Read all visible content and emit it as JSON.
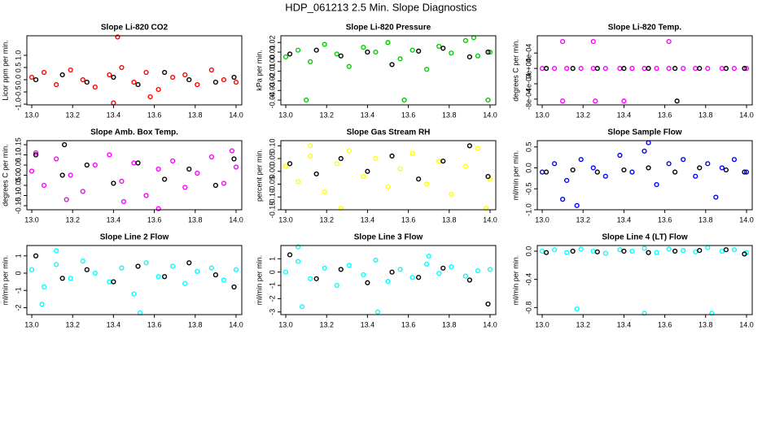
{
  "title": "HDP_061213  2.5 Min. Slope Diagnostics",
  "chart_data": [
    {
      "type": "scatter",
      "title": "Slope Li-820 CO2",
      "ylabel": "Licor ppm per min.",
      "xlim": [
        12.976,
        14.028
      ],
      "xticks": [
        {
          "value": 13,
          "label": "13.0"
        },
        13.2,
        13.4,
        13.6,
        13.8,
        {
          "value": 14,
          "label": "14.0"
        }
      ],
      "ylim": [
        -1.03,
        1.8
      ],
      "yticks": [
        {
          "value": -1,
          "label": "-1.0"
        },
        -0.5,
        {
          "value": 0,
          "label": "0.0"
        },
        0.5,
        {
          "value": 1,
          "label": "1.0"
        }
      ],
      "series": [
        {
          "color": "#ff0000",
          "x": [
            13.0,
            13.06,
            13.12,
            13.19,
            13.25,
            13.31,
            13.38,
            13.44,
            13.5,
            13.56,
            13.62,
            13.69,
            13.75,
            13.81,
            13.88,
            13.94,
            14.0,
            13.42,
            13.4,
            13.58
          ],
          "values": [
            0.1,
            0.3,
            -0.2,
            0.4,
            0.0,
            -0.3,
            0.2,
            0.5,
            -0.1,
            0.3,
            -0.4,
            0.1,
            0.2,
            -0.2,
            0.4,
            0.0,
            -0.1,
            1.75,
            -0.95,
            -0.7
          ]
        },
        {
          "color": "#000000",
          "x": [
            13.02,
            13.15,
            13.27,
            13.4,
            13.52,
            13.65,
            13.77,
            13.9,
            13.99
          ],
          "values": [
            0.0,
            0.2,
            -0.1,
            0.1,
            -0.2,
            0.3,
            0.0,
            -0.1,
            0.1
          ]
        }
      ]
    },
    {
      "type": "scatter",
      "title": "Slope Li-820 Pressure",
      "ylabel": "kPa per min.",
      "xlim": [
        12.976,
        14.028
      ],
      "xticks": [
        {
          "value": 13,
          "label": "13.0"
        },
        13.2,
        13.4,
        13.6,
        13.8,
        {
          "value": 14,
          "label": "14.0"
        }
      ],
      "ylim": [
        -0.045,
        0.027
      ],
      "yticks": [
        -0.04,
        -0.03,
        -0.02,
        -0.01,
        {
          "value": 0,
          "label": "0.00"
        },
        0.01,
        0.02
      ],
      "series": [
        {
          "color": "#00cc00",
          "x": [
            13.0,
            13.06,
            13.12,
            13.19,
            13.25,
            13.31,
            13.38,
            13.44,
            13.5,
            13.56,
            13.62,
            13.69,
            13.75,
            13.81,
            13.88,
            13.94,
            14.0,
            13.1,
            13.58,
            13.99,
            13.92
          ],
          "values": [
            0.005,
            0.012,
            0.0,
            0.018,
            0.008,
            -0.005,
            0.015,
            0.01,
            0.02,
            0.003,
            0.012,
            -0.008,
            0.016,
            0.009,
            0.022,
            0.006,
            0.01,
            -0.04,
            -0.04,
            -0.04,
            0.025
          ]
        },
        {
          "color": "#000000",
          "x": [
            13.02,
            13.15,
            13.27,
            13.4,
            13.52,
            13.65,
            13.77,
            13.9,
            13.99
          ],
          "values": [
            0.008,
            0.012,
            0.006,
            0.01,
            -0.003,
            0.011,
            0.014,
            0.005,
            0.01
          ]
        }
      ]
    },
    {
      "type": "scatter",
      "title": "Slope Li-820 Temp.",
      "ylabel": "degrees C per min.",
      "xlim": [
        12.976,
        14.028
      ],
      "xticks": [
        {
          "value": 13,
          "label": "13.0"
        },
        13.2,
        13.4,
        13.6,
        13.8,
        {
          "value": 14,
          "label": "14.0"
        }
      ],
      "ylim": [
        -0.00095,
        0.00085
      ],
      "yticks": [
        {
          "value": -0.0008,
          "label": "-8e-04"
        },
        {
          "value": -0.0004,
          "label": "-4e-04"
        },
        {
          "value": 0,
          "label": "0e+00"
        },
        {
          "value": 0.0004,
          "label": "4e-04"
        }
      ],
      "series": [
        {
          "color": "#ff00ff",
          "x": [
            13.0,
            13.06,
            13.12,
            13.19,
            13.25,
            13.31,
            13.38,
            13.44,
            13.5,
            13.56,
            13.62,
            13.69,
            13.75,
            13.81,
            13.88,
            13.94,
            14.0,
            13.1,
            13.25,
            13.62,
            13.1,
            13.26,
            13.4
          ],
          "values": [
            0,
            0,
            0,
            0,
            0,
            0,
            0,
            0,
            0,
            0,
            0,
            0,
            0,
            0,
            0,
            0,
            0,
            0.0007,
            0.0007,
            0.0007,
            -0.00085,
            -0.00085,
            -0.00085
          ]
        },
        {
          "color": "#000000",
          "x": [
            13.02,
            13.15,
            13.27,
            13.4,
            13.52,
            13.65,
            13.77,
            13.9,
            13.99,
            13.66
          ],
          "values": [
            0,
            0,
            0,
            0,
            0,
            0,
            0,
            0,
            0,
            -0.00085
          ]
        }
      ]
    },
    {
      "type": "scatter",
      "title": "Slope Amb. Box Temp.",
      "ylabel": "degrees C per min.",
      "xlim": [
        12.976,
        14.028
      ],
      "xticks": [
        {
          "value": 13,
          "label": "13.0"
        },
        13.2,
        13.4,
        13.6,
        13.8,
        {
          "value": 14,
          "label": "14.0"
        }
      ],
      "ylim": [
        -0.17,
        0.17
      ],
      "yticks": [
        -0.15,
        {
          "value": -0.1,
          "label": "-0.10"
        },
        -0.05,
        {
          "value": 0,
          "label": "0.00"
        },
        0.05,
        {
          "value": 0.1,
          "label": "0.10"
        },
        0.15
      ],
      "series": [
        {
          "color": "#ff00ff",
          "x": [
            13.0,
            13.06,
            13.12,
            13.19,
            13.25,
            13.31,
            13.38,
            13.44,
            13.5,
            13.56,
            13.62,
            13.69,
            13.75,
            13.81,
            13.88,
            13.94,
            14.0,
            13.02,
            13.17,
            13.45,
            13.62,
            13.98
          ],
          "values": [
            0.02,
            -0.05,
            0.08,
            0.0,
            -0.08,
            0.05,
            0.1,
            -0.03,
            0.06,
            -0.1,
            0.03,
            0.07,
            -0.06,
            0.01,
            0.09,
            -0.04,
            0.04,
            0.11,
            -0.12,
            -0.13,
            -0.165,
            0.12
          ]
        },
        {
          "color": "#000000",
          "x": [
            13.02,
            13.15,
            13.27,
            13.4,
            13.52,
            13.65,
            13.77,
            13.9,
            13.99,
            13.16
          ],
          "values": [
            0.1,
            0.0,
            0.05,
            -0.04,
            0.06,
            -0.02,
            0.03,
            -0.05,
            0.08,
            0.15
          ]
        }
      ]
    },
    {
      "type": "scatter",
      "title": "Slope Gas Stream RH",
      "ylabel": "percent per min.",
      "xlim": [
        12.976,
        14.028
      ],
      "xticks": [
        {
          "value": 13,
          "label": "13.0"
        },
        13.2,
        13.4,
        13.6,
        13.8,
        {
          "value": 14,
          "label": "14.0"
        }
      ],
      "ylim": [
        -0.15,
        0.12
      ],
      "yticks": [
        -0.15,
        {
          "value": -0.1,
          "label": "-0.10"
        },
        -0.05,
        {
          "value": 0,
          "label": "0.00"
        },
        0.05,
        {
          "value": 0.1,
          "label": "0.10"
        }
      ],
      "series": [
        {
          "color": "#ffff00",
          "x": [
            13.0,
            13.06,
            13.12,
            13.19,
            13.25,
            13.31,
            13.38,
            13.44,
            13.5,
            13.56,
            13.62,
            13.69,
            13.75,
            13.81,
            13.88,
            13.94,
            14.0,
            13.27,
            13.98,
            13.12
          ],
          "values": [
            0.02,
            -0.04,
            0.06,
            -0.08,
            0.03,
            0.08,
            -0.02,
            0.05,
            -0.06,
            0.01,
            0.07,
            -0.05,
            0.04,
            -0.09,
            0.02,
            0.09,
            -0.03,
            -0.145,
            -0.145,
            0.1
          ]
        },
        {
          "color": "#000000",
          "x": [
            13.02,
            13.15,
            13.27,
            13.4,
            13.52,
            13.65,
            13.77,
            13.9,
            13.99
          ],
          "values": [
            0.03,
            -0.01,
            0.05,
            0.0,
            0.06,
            -0.03,
            0.04,
            0.1,
            -0.02
          ]
        }
      ]
    },
    {
      "type": "scatter",
      "title": "Slope Sample Flow",
      "ylabel": "ml/min per min.",
      "xlim": [
        12.976,
        14.028
      ],
      "xticks": [
        {
          "value": 13,
          "label": "13.0"
        },
        13.2,
        13.4,
        13.6,
        13.8,
        {
          "value": 14,
          "label": "14.0"
        }
      ],
      "ylim": [
        -1.0,
        0.65
      ],
      "yticks": [
        {
          "value": -1,
          "label": "-1.0"
        },
        -0.5,
        {
          "value": 0,
          "label": "0.0"
        },
        0.5
      ],
      "series": [
        {
          "color": "#0000ff",
          "x": [
            13.0,
            13.06,
            13.12,
            13.19,
            13.25,
            13.31,
            13.38,
            13.44,
            13.5,
            13.56,
            13.62,
            13.69,
            13.75,
            13.81,
            13.88,
            13.94,
            14.0,
            13.1,
            13.17,
            13.52,
            13.85
          ],
          "values": [
            -0.1,
            0.1,
            -0.3,
            0.2,
            0.0,
            -0.2,
            0.3,
            -0.1,
            0.4,
            -0.4,
            0.1,
            0.2,
            -0.2,
            0.1,
            0.0,
            0.2,
            -0.1,
            -0.75,
            -0.9,
            0.6,
            -0.7
          ]
        },
        {
          "color": "#000000",
          "x": [
            13.02,
            13.15,
            13.27,
            13.4,
            13.52,
            13.65,
            13.77,
            13.9,
            13.99
          ],
          "values": [
            -0.1,
            -0.05,
            -0.1,
            -0.05,
            0.0,
            -0.1,
            0.0,
            -0.05,
            -0.1
          ]
        }
      ]
    },
    {
      "type": "scatter",
      "title": "Slope Line 2 Flow",
      "ylabel": "ml/min per min.",
      "xlim": [
        12.976,
        14.028
      ],
      "xticks": [
        {
          "value": 13,
          "label": "13.0"
        },
        13.2,
        13.4,
        13.6,
        13.8,
        {
          "value": 14,
          "label": "14.0"
        }
      ],
      "ylim": [
        -2.4,
        1.6
      ],
      "yticks": [
        -2,
        -1,
        0,
        1
      ],
      "series": [
        {
          "color": "#00ffff",
          "x": [
            13.0,
            13.06,
            13.12,
            13.19,
            13.25,
            13.31,
            13.38,
            13.44,
            13.5,
            13.56,
            13.62,
            13.69,
            13.75,
            13.81,
            13.88,
            13.94,
            14.0,
            13.53,
            13.05,
            13.12
          ],
          "values": [
            0.2,
            -0.8,
            0.5,
            -0.3,
            0.7,
            0.0,
            -0.5,
            0.3,
            -1.2,
            0.6,
            -0.2,
            0.4,
            -0.6,
            0.1,
            0.3,
            -0.4,
            0.2,
            -2.3,
            -1.8,
            1.3
          ]
        },
        {
          "color": "#000000",
          "x": [
            13.02,
            13.15,
            13.27,
            13.4,
            13.52,
            13.65,
            13.77,
            13.9,
            13.99
          ],
          "values": [
            1.0,
            -0.3,
            0.2,
            -0.5,
            0.4,
            -0.2,
            0.6,
            -0.1,
            -0.8
          ]
        }
      ]
    },
    {
      "type": "scatter",
      "title": "Slope Line 3 Flow",
      "ylabel": "ml/min per min.",
      "xlim": [
        12.976,
        14.028
      ],
      "xticks": [
        {
          "value": 13,
          "label": "13.0"
        },
        13.2,
        13.4,
        13.6,
        13.8,
        {
          "value": 14,
          "label": "14.0"
        }
      ],
      "ylim": [
        -3.2,
        2.0
      ],
      "yticks": [
        -3,
        -2,
        -1,
        0,
        1
      ],
      "series": [
        {
          "color": "#00ffff",
          "x": [
            13.0,
            13.06,
            13.12,
            13.19,
            13.25,
            13.31,
            13.38,
            13.44,
            13.5,
            13.56,
            13.62,
            13.69,
            13.75,
            13.81,
            13.88,
            13.94,
            14.0,
            13.06,
            13.08,
            13.45,
            13.7
          ],
          "values": [
            0.0,
            0.8,
            -0.5,
            0.3,
            -1.0,
            0.5,
            -0.2,
            0.9,
            -0.7,
            0.2,
            -0.4,
            0.6,
            -0.1,
            0.4,
            -0.3,
            0.1,
            0.2,
            1.9,
            -2.6,
            -3.0,
            1.2
          ]
        },
        {
          "color": "#000000",
          "x": [
            13.02,
            13.15,
            13.27,
            13.4,
            13.52,
            13.65,
            13.77,
            13.9,
            13.99
          ],
          "values": [
            1.3,
            -0.5,
            0.2,
            -0.8,
            0.0,
            -0.4,
            0.3,
            -0.6,
            -2.4
          ]
        }
      ]
    },
    {
      "type": "scatter",
      "title": "Slope Line 4 (LT) Flow",
      "ylabel": "ml/min per min.",
      "xlim": [
        12.976,
        14.028
      ],
      "xticks": [
        {
          "value": 13,
          "label": "13.0"
        },
        13.2,
        13.4,
        13.6,
        13.8,
        {
          "value": 14,
          "label": "14.0"
        }
      ],
      "ylim": [
        -0.9,
        0.08
      ],
      "yticks": [
        -0.8,
        -0.4,
        {
          "value": 0,
          "label": "0.0"
        }
      ],
      "series": [
        {
          "color": "#00ffff",
          "x": [
            13.0,
            13.06,
            13.12,
            13.19,
            13.25,
            13.31,
            13.38,
            13.44,
            13.5,
            13.56,
            13.62,
            13.69,
            13.75,
            13.81,
            13.88,
            13.94,
            14.0,
            13.17,
            13.5,
            13.83
          ],
          "values": [
            0.0,
            0.02,
            -0.02,
            0.03,
            0.0,
            -0.03,
            0.02,
            0.0,
            0.04,
            -0.02,
            0.03,
            0.01,
            -0.01,
            0.05,
            0.0,
            0.02,
            -0.02,
            -0.82,
            -0.88,
            -0.88
          ]
        },
        {
          "color": "#000000",
          "x": [
            13.02,
            13.15,
            13.27,
            13.4,
            13.52,
            13.65,
            13.77,
            13.9,
            13.99
          ],
          "values": [
            -0.02,
            0.0,
            -0.01,
            0.0,
            -0.02,
            0.0,
            0.01,
            0.02,
            -0.04
          ]
        }
      ]
    }
  ]
}
